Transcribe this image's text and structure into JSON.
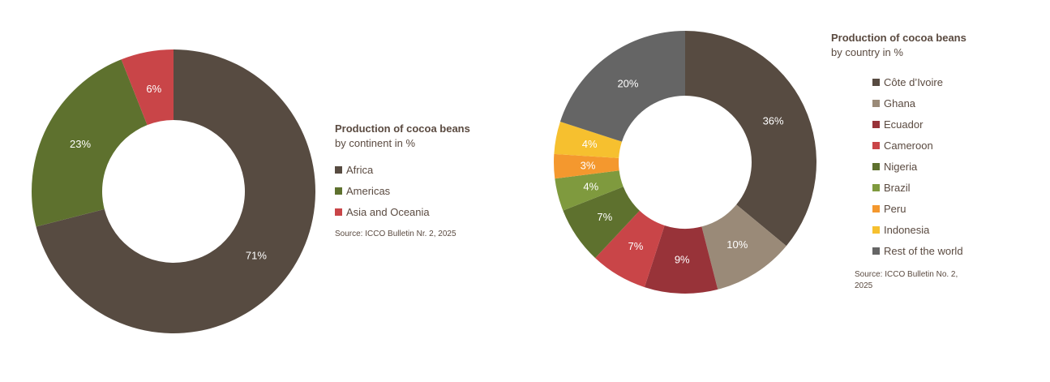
{
  "chart_data": [
    {
      "type": "pie",
      "donut": true,
      "title": "Production of cocoa beans",
      "subtitle": "by continent in %",
      "legend_position": "right",
      "source": "Source: ICCO Bulletin Nr. 2, 2025",
      "slices": [
        {
          "label": "Africa",
          "value": 71,
          "value_label": "71%",
          "color": "#574b41"
        },
        {
          "label": "Americas",
          "value": 23,
          "value_label": "23%",
          "color": "#5e712e"
        },
        {
          "label": "Asia and Oceania",
          "value": 6,
          "value_label": "6%",
          "color": "#c94548"
        }
      ]
    },
    {
      "type": "pie",
      "donut": true,
      "title": "Production of cocoa beans",
      "subtitle": "by country in %",
      "legend_position": "right",
      "source": "Source: ICCO Bulletin No. 2, 2025",
      "slices": [
        {
          "label": "Côte d’Ivoire",
          "value": 36,
          "value_label": "36%",
          "color": "#574b41"
        },
        {
          "label": "Ghana",
          "value": 10,
          "value_label": "10%",
          "color": "#9a8a78"
        },
        {
          "label": "Ecuador",
          "value": 9,
          "value_label": "9%",
          "color": "#983339"
        },
        {
          "label": "Cameroon",
          "value": 7,
          "value_label": "7%",
          "color": "#c94548"
        },
        {
          "label": "Nigeria",
          "value": 7,
          "value_label": "7%",
          "color": "#5e712e"
        },
        {
          "label": "Brazil",
          "value": 4,
          "value_label": "4%",
          "color": "#7f9a3e"
        },
        {
          "label": "Peru",
          "value": 3,
          "value_label": "3%",
          "color": "#f4982e"
        },
        {
          "label": "Indonesia",
          "value": 4,
          "value_label": "4%",
          "color": "#f6c02f"
        },
        {
          "label": "Rest of the world",
          "value": 20,
          "value_label": "20%",
          "color": "#656565"
        }
      ]
    }
  ]
}
